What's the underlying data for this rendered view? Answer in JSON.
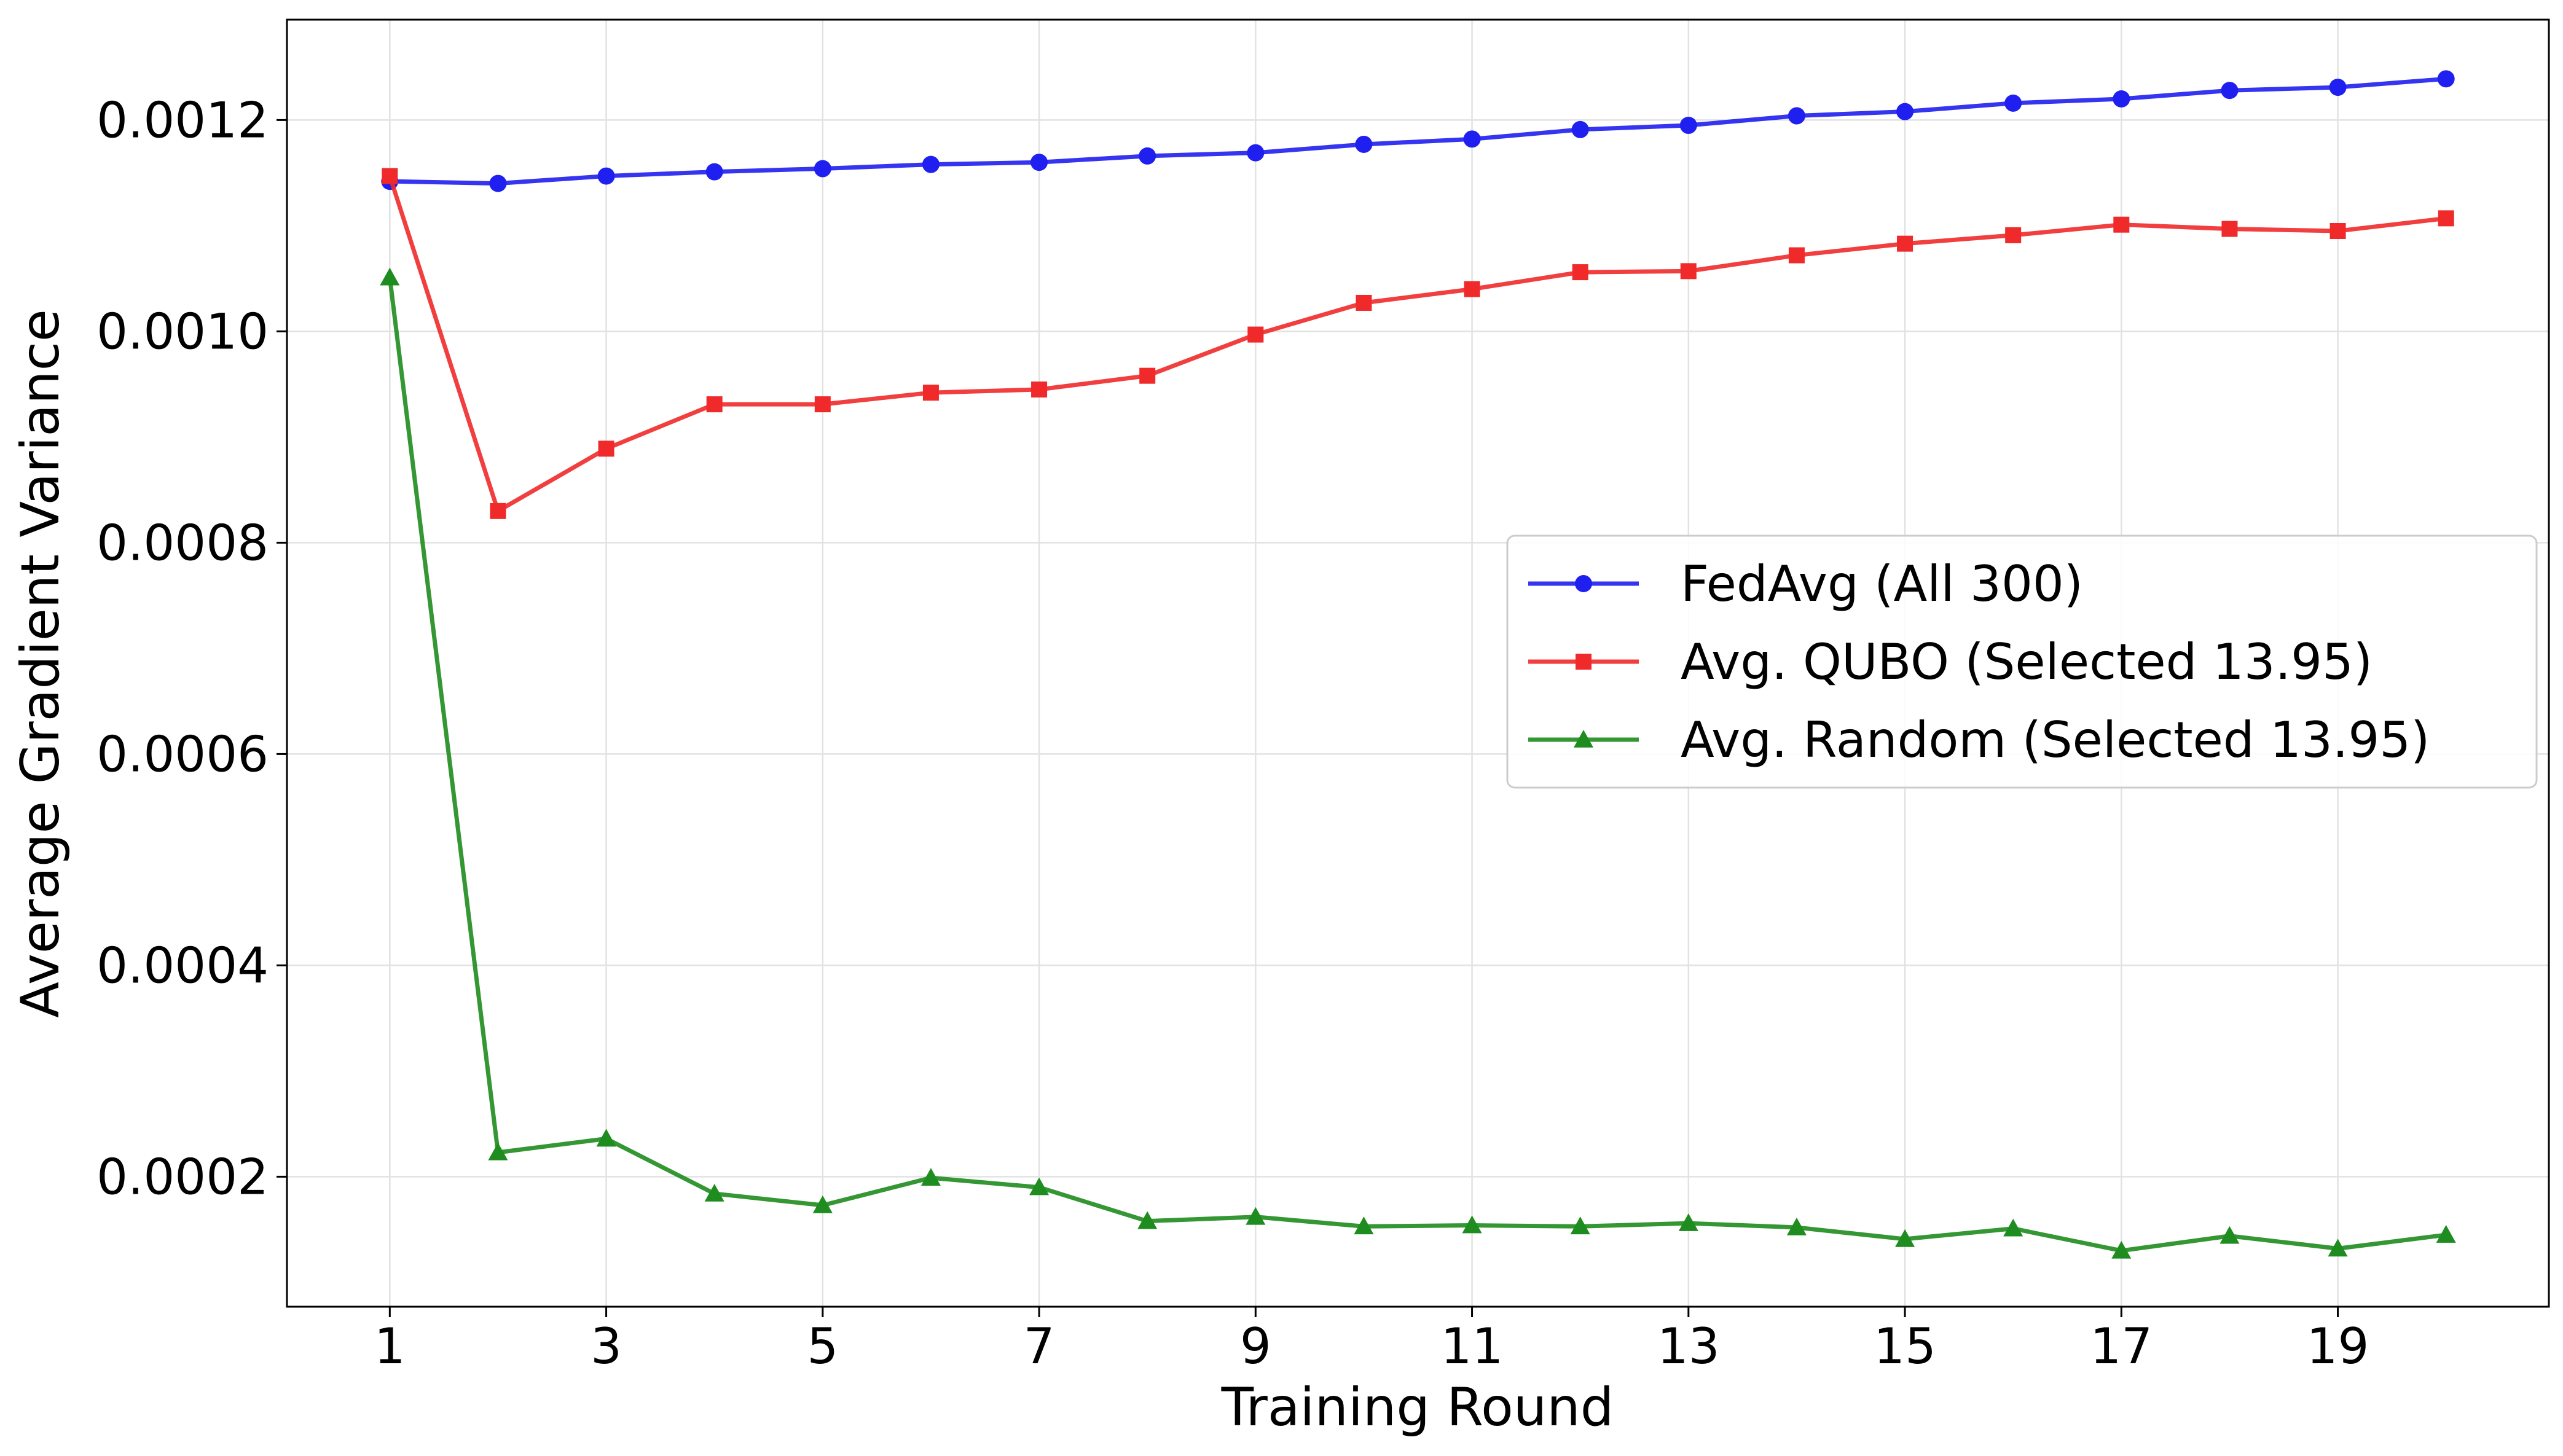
{
  "chart_data": {
    "type": "line",
    "title": "",
    "xlabel": "Training Round",
    "ylabel": "Average Gradient Variance",
    "x": [
      1,
      2,
      3,
      4,
      5,
      6,
      7,
      8,
      9,
      10,
      11,
      12,
      13,
      14,
      15,
      16,
      17,
      18,
      19,
      20
    ],
    "xticks": [
      1,
      3,
      5,
      7,
      9,
      11,
      13,
      15,
      17,
      19
    ],
    "xtick_labels": [
      "1",
      "3",
      "5",
      "7",
      "9",
      "11",
      "13",
      "15",
      "17",
      "19"
    ],
    "xlim": [
      0.05,
      20.95
    ],
    "yticks": [
      0.0002,
      0.0004,
      0.0006,
      0.0008,
      0.001,
      0.0012
    ],
    "ytick_labels": [
      "0.0002",
      "0.0004",
      "0.0006",
      "0.0008",
      "0.0010",
      "0.0012"
    ],
    "ylim": [
      7.7e-05,
      0.001295
    ],
    "grid": true,
    "legend_position": "center-right",
    "series": [
      {
        "name": "FedAvg (All 300)",
        "color": "#1f1ff0",
        "marker": "circle",
        "values": [
          0.001142,
          0.00114,
          0.001147,
          0.001151,
          0.001154,
          0.001158,
          0.00116,
          0.001166,
          0.001169,
          0.001177,
          0.001182,
          0.001191,
          0.001195,
          0.001204,
          0.001208,
          0.001216,
          0.00122,
          0.001228,
          0.001231,
          0.001239
        ]
      },
      {
        "name": "Avg. QUBO (Selected 13.95)",
        "color": "#f02a2a",
        "marker": "square",
        "values": [
          0.001147,
          0.00083,
          0.000889,
          0.000931,
          0.000931,
          0.000942,
          0.000945,
          0.000958,
          0.000997,
          0.001027,
          0.00104,
          0.001056,
          0.001057,
          0.001072,
          0.001083,
          0.001091,
          0.001101,
          0.001097,
          0.001095,
          0.001107
        ]
      },
      {
        "name": "Avg. Random (Selected 13.95)",
        "color": "#1e8c1e",
        "marker": "triangle",
        "values": [
          0.001051,
          0.000223,
          0.000236,
          0.000184,
          0.000173,
          0.000199,
          0.00019,
          0.000158,
          0.000162,
          0.000153,
          0.000154,
          0.000153,
          0.000156,
          0.000152,
          0.000141,
          0.000151,
          0.00013,
          0.000144,
          0.000132,
          0.000145
        ]
      }
    ]
  }
}
